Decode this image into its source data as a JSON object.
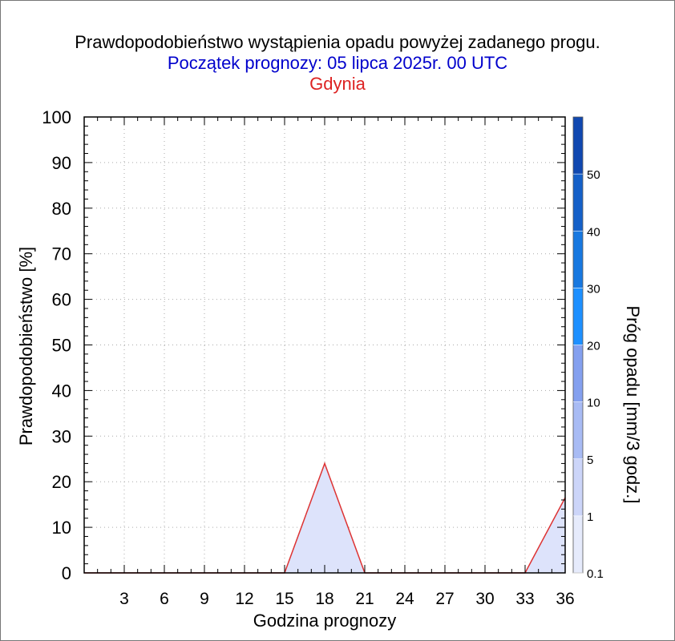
{
  "chart_data": {
    "type": "area",
    "title": "Prawdopodobieństwo wystąpienia opadu powyżej zadanego progu.",
    "subtitle": "Początek prognozy: 05 lipca 2025r. 00 UTC",
    "location": "Gdynia",
    "xlabel": "Godzina prognozy",
    "ylabel": "Prawdopodobieństwo [%]",
    "xlim": [
      0,
      36
    ],
    "ylim": [
      0,
      100
    ],
    "x_ticks": [
      3,
      6,
      9,
      12,
      15,
      18,
      21,
      24,
      27,
      30,
      33,
      36
    ],
    "y_ticks": [
      0,
      10,
      20,
      30,
      40,
      50,
      60,
      70,
      80,
      90,
      100
    ],
    "grid": true,
    "series": [
      {
        "threshold": "0.1",
        "color": "#dde3fb",
        "line_color": "#dd3333",
        "x": [
          0,
          3,
          6,
          9,
          12,
          15,
          18,
          21,
          24,
          27,
          30,
          33,
          36
        ],
        "values": [
          0,
          0,
          0,
          0,
          0,
          0,
          24,
          0,
          0,
          0,
          0,
          0,
          16.5
        ]
      }
    ],
    "colorbar": {
      "label": "Próg opadu [mm/3 godz.]",
      "ticks": [
        "0.1",
        "1",
        "5",
        "10",
        "20",
        "30",
        "40",
        "50"
      ],
      "colors": [
        "#e6ebfc",
        "#ccd5f9",
        "#a8bbf4",
        "#84a0ef",
        "#1e90ff",
        "#1878e0",
        "#1560c8",
        "#1048b0"
      ]
    },
    "colors": {
      "title": "#000000",
      "subtitle": "#0000cc",
      "location": "#dd2222",
      "grid": "#aaaaaa"
    }
  }
}
